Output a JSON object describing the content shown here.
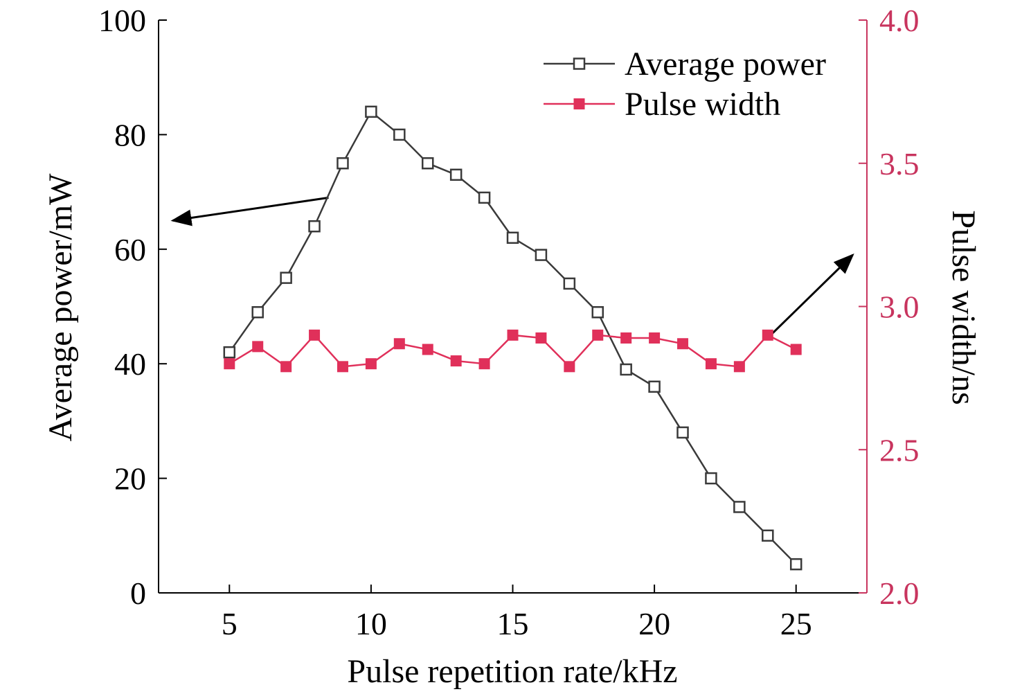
{
  "chart_data": {
    "type": "line",
    "x": [
      5,
      6,
      7,
      8,
      9,
      10,
      11,
      12,
      13,
      14,
      15,
      16,
      17,
      18,
      19,
      20,
      21,
      22,
      23,
      24,
      25
    ],
    "xlabel": "Pulse repetition rate/kHz",
    "xlim": [
      2.5,
      27.5
    ],
    "xticks": [
      5,
      10,
      15,
      20,
      25
    ],
    "ylabel_left": "Average power/mW",
    "ylim_left": [
      0,
      100
    ],
    "yticks_left": [
      0,
      20,
      40,
      60,
      80,
      100
    ],
    "ylabel_right": "Pulse width/ns",
    "ylim_right": [
      2.0,
      4.0
    ],
    "yticks_right": [
      "2.0",
      "2.5",
      "3.0",
      "3.5",
      "4.0"
    ],
    "grid": false,
    "legend_position": "top-right",
    "series": [
      {
        "name": "Average power",
        "axis": "left",
        "marker": "open-square",
        "color": "#3a3a3a",
        "values": [
          42,
          49,
          55,
          64,
          75,
          84,
          80,
          75,
          73,
          69,
          62,
          59,
          54,
          49,
          39,
          36,
          28,
          20,
          15,
          10,
          5
        ]
      },
      {
        "name": "Pulse width",
        "axis": "right",
        "marker": "filled-square",
        "color": "#e0305a",
        "values": [
          2.8,
          2.86,
          2.79,
          2.9,
          2.79,
          2.8,
          2.87,
          2.85,
          2.81,
          2.8,
          2.9,
          2.89,
          2.79,
          2.9,
          2.89,
          2.89,
          2.87,
          2.8,
          2.79,
          2.9,
          2.85
        ]
      }
    ],
    "annotations": [
      {
        "type": "arrow",
        "points_to": "left-axis",
        "from": {
          "x": 8.5,
          "y": 69
        },
        "to": {
          "x": 3.0,
          "y": 65
        }
      },
      {
        "type": "arrow",
        "points_to": "right-axis",
        "from": {
          "x": 24,
          "y": 2.89
        },
        "to": {
          "x": 27.0,
          "y": 3.18
        }
      }
    ],
    "colors": {
      "left_axis": "#000000",
      "right_axis": "#c8345e"
    }
  }
}
